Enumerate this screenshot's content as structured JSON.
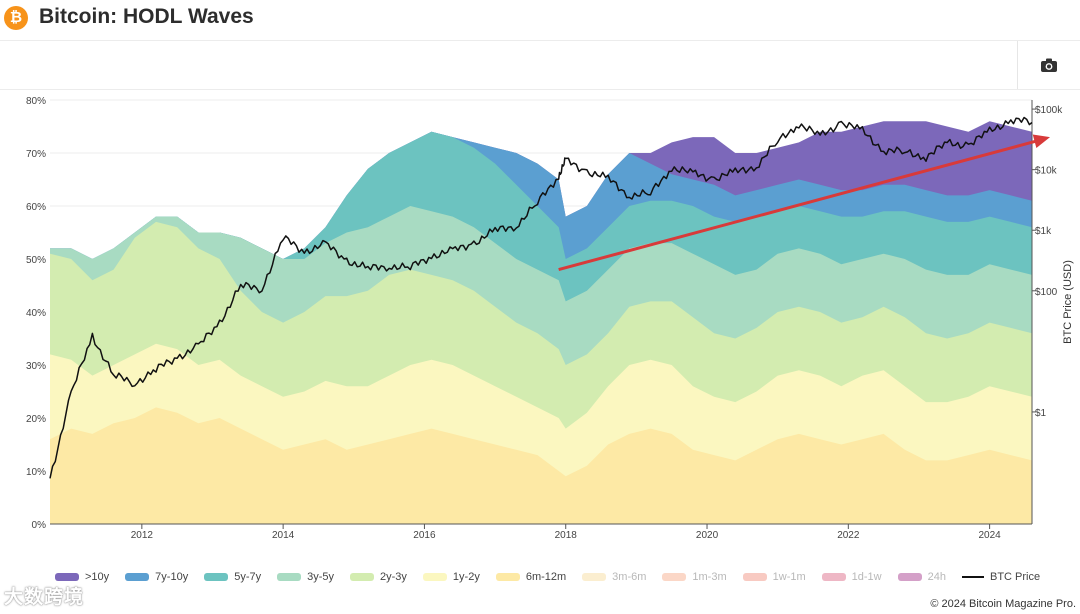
{
  "page": {
    "title": "Bitcoin: HODL Waves",
    "logo_symbol": "₿"
  },
  "toolbar": {
    "camera_icon": "camera-icon"
  },
  "chart_data": {
    "type": "area",
    "title": "Bitcoin: HODL Waves",
    "xlabel": "",
    "ylabel": "",
    "y2label": "BTC Price (USD)",
    "xlim": [
      2010.7,
      2024.6
    ],
    "ylim": [
      0,
      80
    ],
    "y2lim_log10": [
      -1.85,
      5.15
    ],
    "x_ticks": [
      2012,
      2014,
      2016,
      2018,
      2020,
      2022,
      2024
    ],
    "y_ticks": [
      "0%",
      "10%",
      "20%",
      "30%",
      "40%",
      "50%",
      "60%",
      "70%",
      "80%"
    ],
    "y2_ticks": [
      "$1",
      "$100",
      "$1k",
      "$10k",
      "$100k"
    ],
    "y2_tick_values": [
      1,
      100,
      1000,
      10000,
      100000
    ],
    "x": [
      2010.7,
      2011.0,
      2011.3,
      2011.6,
      2011.9,
      2012.2,
      2012.5,
      2012.8,
      2013.1,
      2013.4,
      2013.7,
      2014.0,
      2014.3,
      2014.6,
      2014.9,
      2015.2,
      2015.5,
      2015.8,
      2016.1,
      2016.4,
      2016.7,
      2017.0,
      2017.3,
      2017.6,
      2017.9,
      2018.0,
      2018.3,
      2018.6,
      2018.9,
      2019.2,
      2019.5,
      2019.8,
      2020.1,
      2020.4,
      2020.7,
      2021.0,
      2021.3,
      2021.6,
      2021.9,
      2022.2,
      2022.5,
      2022.8,
      2023.1,
      2023.4,
      2023.7,
      2024.0,
      2024.3,
      2024.6
    ],
    "series": [
      {
        "name": "6m-12m",
        "color": "#fde9a5",
        "values": [
          16,
          18,
          17,
          19,
          20,
          22,
          21,
          19,
          20,
          18,
          16,
          14,
          15,
          16,
          14,
          15,
          16,
          17,
          18,
          17,
          16,
          15,
          14,
          13,
          10,
          9,
          11,
          15,
          17,
          18,
          17,
          14,
          13,
          12,
          14,
          16,
          17,
          16,
          15,
          16,
          17,
          14,
          12,
          12,
          13,
          14,
          13,
          12
        ]
      },
      {
        "name": "1y-2y",
        "color": "#fbf7c0",
        "values": [
          32,
          31,
          28,
          30,
          32,
          34,
          33,
          30,
          31,
          28,
          26,
          24,
          25,
          27,
          26,
          26,
          28,
          30,
          31,
          30,
          28,
          26,
          24,
          22,
          20,
          18,
          21,
          26,
          30,
          31,
          30,
          26,
          24,
          23,
          25,
          28,
          29,
          28,
          26,
          28,
          29,
          26,
          23,
          23,
          24,
          26,
          25,
          24
        ]
      },
      {
        "name": "2y-3y",
        "color": "#d3ecb0",
        "values": [
          51,
          50,
          46,
          48,
          54,
          57,
          56,
          52,
          50,
          44,
          40,
          38,
          40,
          43,
          43,
          44,
          47,
          48,
          47,
          46,
          44,
          41,
          38,
          36,
          33,
          30,
          32,
          36,
          41,
          42,
          42,
          39,
          36,
          35,
          37,
          40,
          41,
          40,
          38,
          39,
          41,
          39,
          36,
          35,
          36,
          38,
          37,
          36
        ]
      },
      {
        "name": "3y-5y",
        "color": "#a8dbc2",
        "values": [
          52,
          52,
          50,
          52,
          55,
          58,
          58,
          55,
          55,
          54,
          52,
          50,
          50,
          53,
          55,
          56,
          58,
          60,
          59,
          58,
          56,
          53,
          50,
          48,
          46,
          42,
          44,
          48,
          52,
          53,
          53,
          51,
          49,
          47,
          48,
          51,
          52,
          51,
          49,
          50,
          51,
          50,
          48,
          47,
          47,
          49,
          48,
          47
        ]
      },
      {
        "name": "5y-7y",
        "color": "#6cc3c0",
        "values": [
          52,
          52,
          50,
          52,
          55,
          58,
          58,
          55,
          55,
          54,
          52,
          50,
          52,
          56,
          62,
          67,
          70,
          72,
          74,
          73,
          71,
          68,
          64,
          60,
          56,
          50,
          52,
          56,
          60,
          61,
          61,
          60,
          58,
          57,
          58,
          59,
          60,
          59,
          58,
          58,
          59,
          59,
          58,
          57,
          57,
          58,
          57,
          56
        ]
      },
      {
        "name": "7y-10y",
        "color": "#5b9fd1",
        "values": [
          52,
          52,
          50,
          52,
          55,
          58,
          58,
          55,
          55,
          54,
          52,
          50,
          52,
          56,
          62,
          67,
          70,
          72,
          74,
          73,
          72,
          71,
          70,
          68,
          65,
          58,
          60,
          66,
          70,
          68,
          66,
          65,
          64,
          62,
          63,
          64,
          65,
          64,
          63,
          63,
          64,
          64,
          63,
          62,
          62,
          63,
          62,
          61
        ]
      },
      {
        "name": ">10y",
        "color": "#7c68ba",
        "values": [
          52,
          52,
          50,
          52,
          55,
          58,
          58,
          55,
          55,
          54,
          52,
          50,
          52,
          56,
          62,
          67,
          70,
          72,
          74,
          73,
          72,
          71,
          70,
          68,
          65,
          58,
          60,
          66,
          70,
          70,
          72,
          73,
          73,
          70,
          70,
          71,
          72,
          74,
          74,
          75,
          76,
          76,
          76,
          75,
          74,
          76,
          75,
          74
        ]
      }
    ],
    "btc_price": {
      "name": "BTC Price",
      "color": "#111111",
      "values": [
        0.08,
        2,
        18,
        4,
        3,
        5,
        8,
        12,
        30,
        120,
        110,
        750,
        450,
        580,
        320,
        230,
        260,
        240,
        380,
        450,
        620,
        980,
        1200,
        2800,
        8000,
        14000,
        9500,
        7000,
        3800,
        4000,
        11000,
        8500,
        7200,
        9000,
        11500,
        29000,
        58000,
        35000,
        61000,
        43000,
        21000,
        19500,
        16500,
        27000,
        26000,
        42000,
        68000,
        60000
      ]
    },
    "legend": [
      {
        "label": ">10y",
        "color": "#7c68ba",
        "dim": false
      },
      {
        "label": "7y-10y",
        "color": "#5b9fd1",
        "dim": false
      },
      {
        "label": "5y-7y",
        "color": "#6cc3c0",
        "dim": false
      },
      {
        "label": "3y-5y",
        "color": "#a8dbc2",
        "dim": false
      },
      {
        "label": "2y-3y",
        "color": "#d3ecb0",
        "dim": false
      },
      {
        "label": "1y-2y",
        "color": "#fbf7c0",
        "dim": false
      },
      {
        "label": "6m-12m",
        "color": "#fde9a5",
        "dim": false
      },
      {
        "label": "3m-6m",
        "color": "#fbeed0",
        "dim": true
      },
      {
        "label": "1m-3m",
        "color": "#fbd7c7",
        "dim": true
      },
      {
        "label": "1w-1m",
        "color": "#f8cac2",
        "dim": true
      },
      {
        "label": "1d-1w",
        "color": "#eeb7c5",
        "dim": true
      },
      {
        "label": "24h",
        "color": "#d4a0c8",
        "dim": true
      }
    ],
    "legend_price_label": "BTC Price",
    "annotations": [
      {
        "type": "arrow",
        "color": "#d83a3a",
        "from": [
          2017.9,
          48
        ],
        "to": [
          2024.9,
          73
        ]
      }
    ]
  },
  "footer": {
    "copyright": "© 2024 Bitcoin Magazine Pro."
  },
  "watermark": {
    "text": "大数跨境"
  }
}
